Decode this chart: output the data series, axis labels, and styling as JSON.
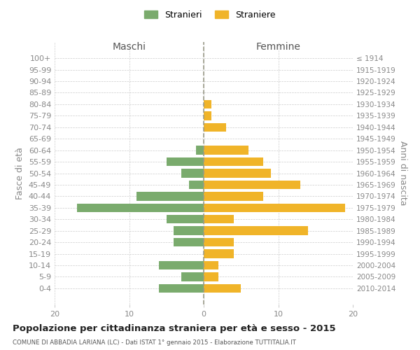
{
  "age_groups": [
    "100+",
    "95-99",
    "90-94",
    "85-89",
    "80-84",
    "75-79",
    "70-74",
    "65-69",
    "60-64",
    "55-59",
    "50-54",
    "45-49",
    "40-44",
    "35-39",
    "30-34",
    "25-29",
    "20-24",
    "15-19",
    "10-14",
    "5-9",
    "0-4"
  ],
  "birth_years": [
    "≤ 1914",
    "1915-1919",
    "1920-1924",
    "1925-1929",
    "1930-1934",
    "1935-1939",
    "1940-1944",
    "1945-1949",
    "1950-1954",
    "1955-1959",
    "1960-1964",
    "1965-1969",
    "1970-1974",
    "1975-1979",
    "1980-1984",
    "1985-1989",
    "1990-1994",
    "1995-1999",
    "2000-2004",
    "2005-2009",
    "2010-2014"
  ],
  "males": [
    0,
    0,
    0,
    0,
    0,
    0,
    0,
    0,
    1,
    5,
    3,
    2,
    9,
    17,
    5,
    4,
    4,
    0,
    6,
    3,
    6
  ],
  "females": [
    0,
    0,
    0,
    0,
    1,
    1,
    3,
    0,
    6,
    8,
    9,
    13,
    8,
    19,
    4,
    14,
    4,
    4,
    2,
    2,
    5
  ],
  "male_color": "#7aab6d",
  "female_color": "#f0b429",
  "grid_color": "#cccccc",
  "title": "Popolazione per cittadinanza straniera per età e sesso - 2015",
  "subtitle": "COMUNE DI ABBADIA LARIANA (LC) - Dati ISTAT 1° gennaio 2015 - Elaborazione TUTTITALIA.IT",
  "ylabel_left": "Fasce di età",
  "ylabel_right": "Anni di nascita",
  "xlabel_left": "Maschi",
  "xlabel_right": "Femmine",
  "legend_male": "Stranieri",
  "legend_female": "Straniere",
  "xlim": 20
}
